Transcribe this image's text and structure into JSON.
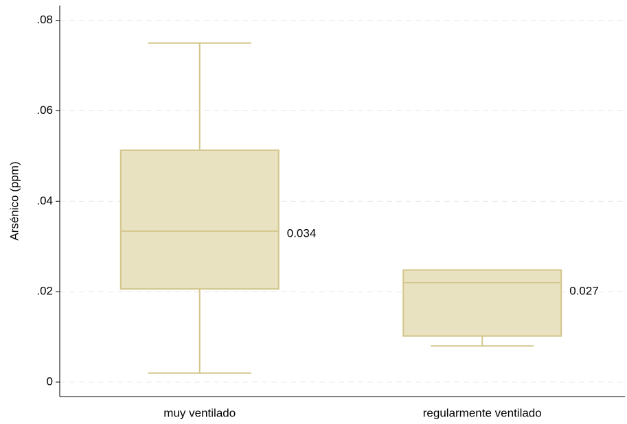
{
  "chart_data": {
    "type": "box",
    "y_label": "Arsénico (ppm)",
    "categories": [
      "muy ventilado",
      "regularmente ventilado"
    ],
    "min": [
      0.002,
      0.008
    ],
    "q1": [
      0.0206,
      0.0102
    ],
    "median": [
      0.0334,
      0.022
    ],
    "q3": [
      0.0513,
      0.0248
    ],
    "max": [
      0.075,
      0.0248
    ],
    "means": [
      0.034,
      0.027
    ],
    "fill": "#e8e2c0",
    "color": "#d3c58b",
    "ylim": [
      -0.0032,
      0.0833
    ],
    "yticks": [
      0,
      {
        "value": 0.02,
        "label": ".02"
      },
      {
        "value": 0.04,
        "label": ".04"
      },
      {
        "value": 0.06,
        "label": ".06"
      },
      {
        "value": 0.08,
        "label": ".08"
      }
    ],
    "grid": true
  }
}
